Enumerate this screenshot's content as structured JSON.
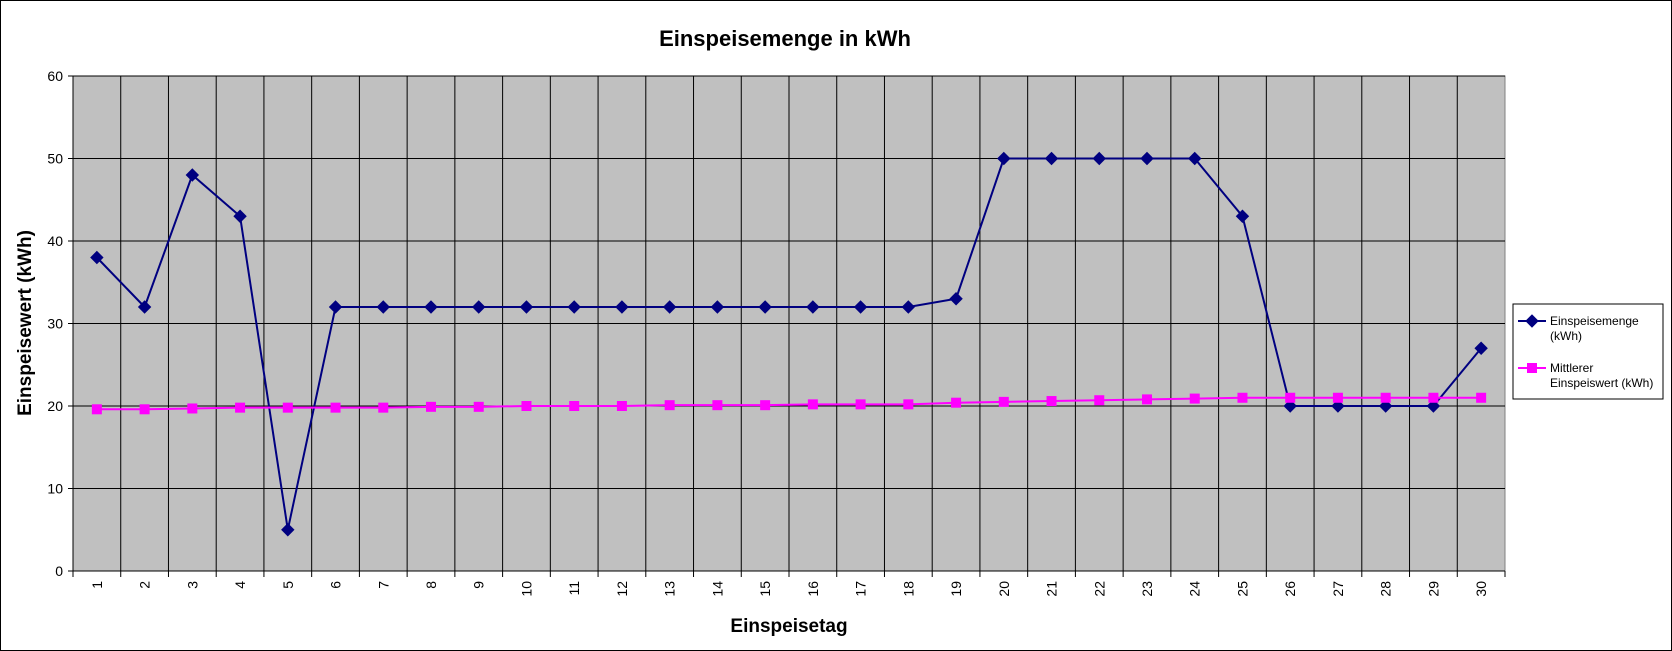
{
  "chart_data": {
    "type": "line",
    "title": "Einspeisemenge in kWh",
    "xlabel": "Einspeisetag",
    "ylabel": "Einspeisewert  (kWh)",
    "ylim": [
      0,
      60
    ],
    "yticks": [
      0,
      10,
      20,
      30,
      40,
      50,
      60
    ],
    "grid": true,
    "legend_position": "right",
    "plot_background": "#C0C0C0",
    "categories": [
      "1",
      "2",
      "3",
      "4",
      "5",
      "6",
      "7",
      "8",
      "9",
      "10",
      "11",
      "12",
      "13",
      "14",
      "15",
      "16",
      "17",
      "18",
      "19",
      "20",
      "21",
      "22",
      "23",
      "24",
      "25",
      "26",
      "27",
      "28",
      "29",
      "30"
    ],
    "series": [
      {
        "name": "Einspeisemenge (kWh)",
        "legend_lines": [
          "Einspeisemenge",
          "(kWh)"
        ],
        "color": "#000080",
        "marker": "diamond",
        "values": [
          38,
          32,
          48,
          43,
          5,
          32,
          32,
          32,
          32,
          32,
          32,
          32,
          32,
          32,
          32,
          32,
          32,
          32,
          33,
          50,
          50,
          50,
          50,
          50,
          43,
          20,
          20,
          20,
          20,
          27
        ]
      },
      {
        "name": "Mittlerer Einspeiswert (kWh)",
        "legend_lines": [
          "Mittlerer",
          "Einspeiswert (kWh)"
        ],
        "color": "#FF00FF",
        "marker": "square",
        "values": [
          19.6,
          19.6,
          19.7,
          19.8,
          19.8,
          19.8,
          19.8,
          19.9,
          19.9,
          20.0,
          20.0,
          20.0,
          20.1,
          20.1,
          20.1,
          20.2,
          20.2,
          20.2,
          20.4,
          20.5,
          20.6,
          20.7,
          20.8,
          20.9,
          21.0,
          21.0,
          21.0,
          21.0,
          21.0,
          21.0
        ]
      }
    ]
  }
}
